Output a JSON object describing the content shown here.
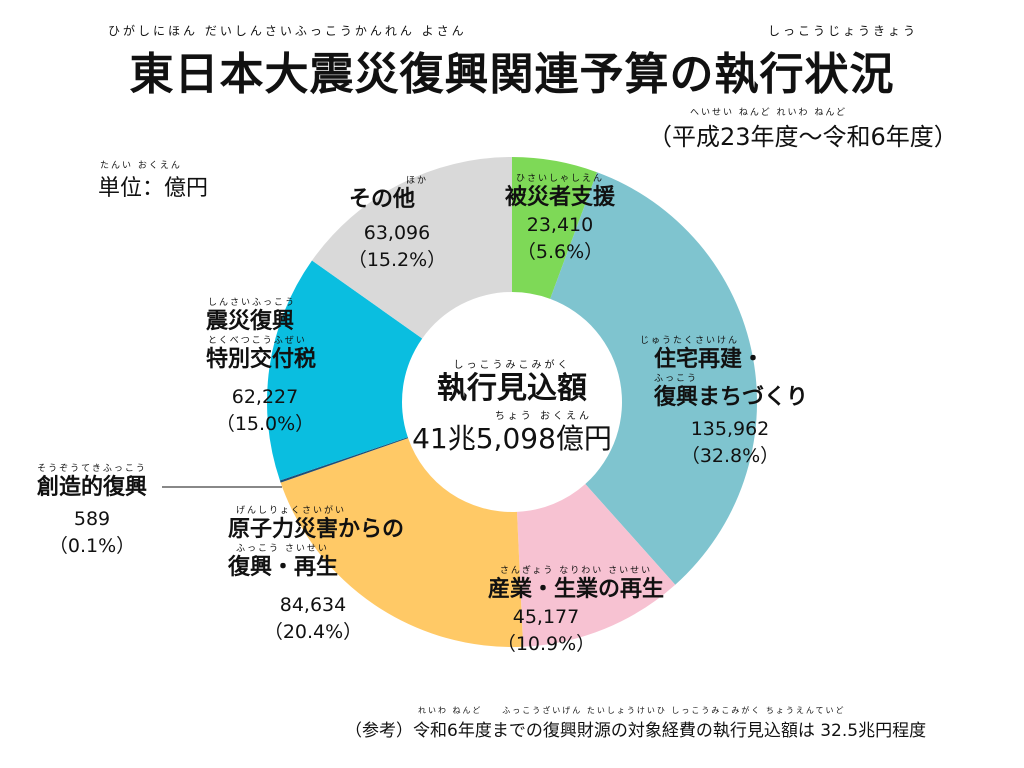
{
  "header": {
    "title": "東日本大震災復興関連予算の執行状況",
    "title_ruby_1": "ひがしにほん だいしんさいふっこうかんれん よさん",
    "title_ruby_2": "しっこうじょうきょう",
    "subtitle": "（平成23年度〜令和6年度）",
    "subtitle_ruby": "へいせい ねんど れいわ ねんど",
    "unit": "単位：億円",
    "unit_ruby": "たんい おくえん"
  },
  "center": {
    "ruby_1": "しっこうみこみがく",
    "title": "執行見込額",
    "ruby_2": "ちょう おくえん",
    "value": "41兆5,098億円"
  },
  "footnote": {
    "ruby": "れいわ ねんど　　ふっこうざいげん たいしょうけいひ しっこうみこみがく ちょうえんていど",
    "text": "（参考）令和6年度までの復興財源の対象経費の執行見込額は 32.5兆円程度"
  },
  "chart_data": {
    "type": "pie",
    "donut": true,
    "unit": "億円",
    "slices": [
      {
        "label": "被災者支援",
        "ruby": "ひさいしゃしえん",
        "value": 23410,
        "value_label": "23,410",
        "percent_label": "（5.6%）",
        "color": "#7ED957"
      },
      {
        "label": "住宅再建・復興まちづくり",
        "line1": "住宅再建・",
        "line2": "復興まちづくり",
        "ruby": "じゅうたくさいけん",
        "ruby2": "ふっこう",
        "value": 135962,
        "value_label": "135,962",
        "percent_label": "（32.8%）",
        "color": "#7FC4CF"
      },
      {
        "label": "産業・生業の再生",
        "ruby": "さんぎょう なりわい さいせい",
        "value": 45177,
        "value_label": "45,177",
        "percent_label": "（10.9%）",
        "color": "#F7C2D2"
      },
      {
        "label": "原子力災害からの復興・再生",
        "line1": "原子力災害からの",
        "line2": "復興・再生",
        "ruby": "げんしりょくさいがい",
        "ruby2": "ふっこう さいせい",
        "value": 84634,
        "value_label": "84,634",
        "percent_label": "（20.4%）",
        "color": "#FFC966"
      },
      {
        "label": "創造的復興",
        "ruby": "そうぞうてきふっこう",
        "value": 589,
        "value_label": "589",
        "percent_label": "（0.1%）",
        "color": "#1F4E79"
      },
      {
        "label": "震災復興特別交付税",
        "line1": "震災復興",
        "line2": "特別交付税",
        "ruby": "しんさいふっこう",
        "ruby2": "とくべつこうふぜい",
        "value": 62227,
        "value_label": "62,227",
        "percent_label": "（15.0%）",
        "color": "#0ABEE0"
      },
      {
        "label": "その他",
        "ruby": "ほか",
        "value": 63096,
        "value_label": "63,096",
        "percent_label": "（15.2%）",
        "color": "#D9D9D9"
      }
    ]
  }
}
